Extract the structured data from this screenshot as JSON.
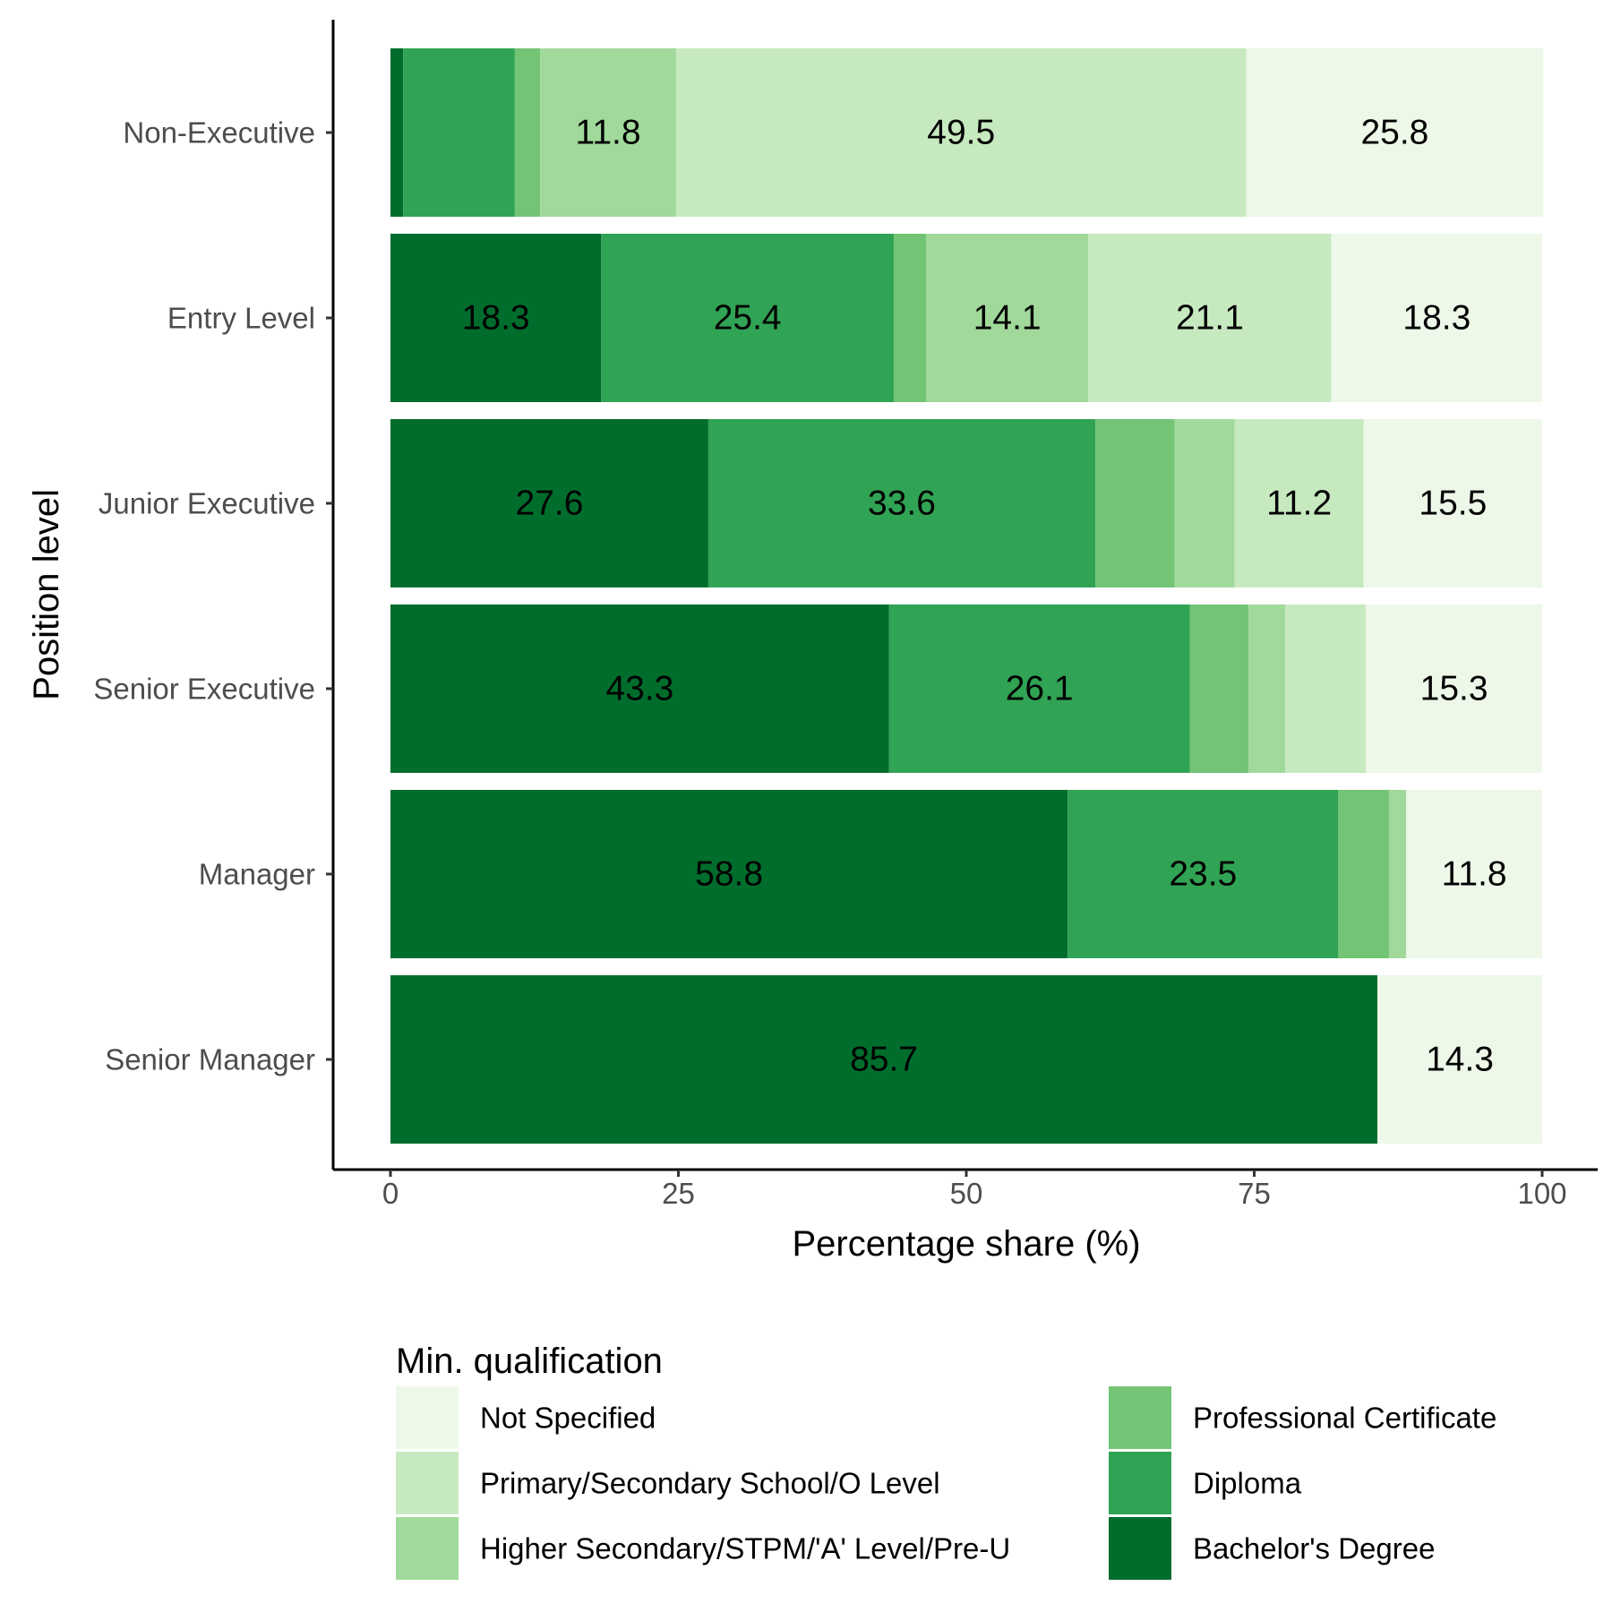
{
  "chart_data": {
    "type": "bar",
    "orientation": "horizontal",
    "stacked": true,
    "xlabel": "Percentage share (%)",
    "ylabel": "Position level",
    "xlim": [
      0,
      100
    ],
    "xticks": [
      0,
      25,
      50,
      75,
      100
    ],
    "grid": false,
    "categories": [
      "Non-Executive",
      "Entry Level",
      "Junior Executive",
      "Senior Executive",
      "Manager",
      "Senior Manager"
    ],
    "series": [
      {
        "name": "Bachelor's Degree",
        "color": "#006d2c",
        "values": [
          1.1,
          18.3,
          27.6,
          43.3,
          58.8,
          85.7
        ],
        "labels": [
          "",
          "18.3",
          "27.6",
          "43.3",
          "58.8",
          "85.7"
        ]
      },
      {
        "name": "Diploma",
        "color": "#31a354",
        "values": [
          9.7,
          25.4,
          33.6,
          26.1,
          23.5,
          0
        ],
        "labels": [
          "",
          "25.4",
          "33.6",
          "26.1",
          "23.5",
          ""
        ]
      },
      {
        "name": "Professional Certificate",
        "color": "#74c476",
        "values": [
          2.2,
          2.8,
          6.9,
          5.1,
          4.4,
          0
        ],
        "labels": [
          "",
          "",
          "",
          "",
          "",
          ""
        ]
      },
      {
        "name": "Higher Secondary/STPM/'A' Level/Pre-U",
        "color": "#a1d99b",
        "values": [
          11.8,
          14.1,
          5.2,
          3.2,
          1.5,
          0
        ],
        "labels": [
          "11.8",
          "14.1",
          "",
          "",
          "",
          ""
        ]
      },
      {
        "name": "Primary/Secondary School/O Level",
        "color": "#c7e9c0",
        "values": [
          49.5,
          21.1,
          11.2,
          7.0,
          0,
          0
        ],
        "labels": [
          "49.5",
          "21.1",
          "11.2",
          "",
          "",
          ""
        ]
      },
      {
        "name": "Not Specified",
        "color": "#edf8e9",
        "values": [
          25.8,
          18.3,
          15.5,
          15.3,
          11.8,
          14.3
        ],
        "labels": [
          "25.8",
          "18.3",
          "15.5",
          "15.3",
          "11.8",
          "14.3"
        ]
      }
    ],
    "legend": {
      "title": "Min. qualification",
      "position": "bottom",
      "columns": [
        [
          "Not Specified",
          "Primary/Secondary School/O Level",
          "Higher Secondary/STPM/'A' Level/Pre-U"
        ],
        [
          "Professional Certificate",
          "Diploma",
          "Bachelor's Degree"
        ]
      ]
    }
  }
}
